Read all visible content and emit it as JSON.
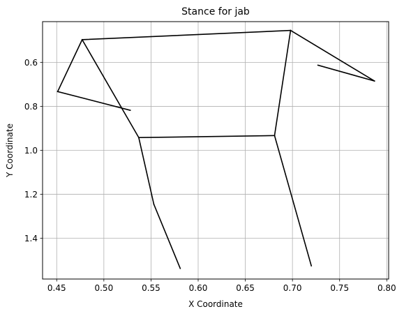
{
  "chart_data": {
    "type": "line",
    "title": "Stance for jab",
    "xlabel": "X Coordinate",
    "ylabel": "Y Coordinate",
    "xlim": [
      0.435,
      0.802
    ],
    "ylim": [
      1.585,
      0.415
    ],
    "y_inverted": true,
    "grid": true,
    "x_ticks": [
      0.45,
      0.5,
      0.55,
      0.6,
      0.65,
      0.7,
      0.75,
      0.8
    ],
    "x_tick_labels": [
      "0.45",
      "0.50",
      "0.55",
      "0.60",
      "0.65",
      "0.70",
      "0.75",
      "0.80"
    ],
    "y_ticks": [
      0.6,
      0.8,
      1.0,
      1.2,
      1.4
    ],
    "y_tick_labels": [
      "0.6",
      "0.8",
      "1.0",
      "1.2",
      "1.4"
    ],
    "line_color": "#000000",
    "segments": [
      {
        "x": [
          0.477,
          0.698
        ],
        "y": [
          0.497,
          0.455
        ]
      },
      {
        "x": [
          0.477,
          0.451
        ],
        "y": [
          0.497,
          0.733
        ]
      },
      {
        "x": [
          0.451,
          0.528
        ],
        "y": [
          0.733,
          0.818
        ]
      },
      {
        "x": [
          0.477,
          0.537
        ],
        "y": [
          0.497,
          0.942
        ]
      },
      {
        "x": [
          0.537,
          0.681
        ],
        "y": [
          0.942,
          0.933
        ]
      },
      {
        "x": [
          0.698,
          0.681
        ],
        "y": [
          0.455,
          0.933
        ]
      },
      {
        "x": [
          0.698,
          0.787
        ],
        "y": [
          0.455,
          0.685
        ]
      },
      {
        "x": [
          0.727,
          0.787
        ],
        "y": [
          0.613,
          0.685
        ]
      },
      {
        "x": [
          0.537,
          0.553
        ],
        "y": [
          0.942,
          1.245
        ]
      },
      {
        "x": [
          0.553,
          0.581
        ],
        "y": [
          1.245,
          1.537
        ]
      },
      {
        "x": [
          0.681,
          0.72
        ],
        "y": [
          0.933,
          1.525
        ]
      }
    ]
  }
}
